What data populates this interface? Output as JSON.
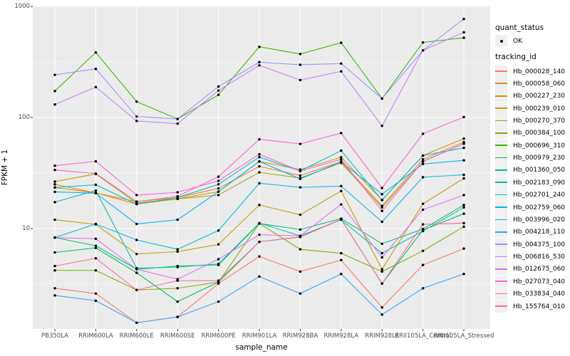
{
  "chart_data": {
    "type": "line",
    "scale": "log10",
    "title": "",
    "xlabel": "sample_name",
    "ylabel": "FPKM + 1",
    "ylim": [
      1.25,
      1100
    ],
    "yticks": [
      {
        "label": "1000",
        "value": 1000
      },
      {
        "label": "100",
        "value": 100
      },
      {
        "label": "10",
        "value": 10
      }
    ],
    "grid": "major-and-minor-white-on-grey",
    "legend_position": "right",
    "point_marker": "black-dot",
    "categories": [
      "PB350LA",
      "RRIM600LA",
      "RRIM600LE",
      "RRIM600SE",
      "RRIM600PE",
      "RRIM901LA",
      "RRIM928BA",
      "RRIM928LA",
      "RRIM928LE",
      "RRII105LA_Control",
      "RRII105LA_Stressed"
    ],
    "series": [
      {
        "name": "Hb_000028_140",
        "color": "#F8766D",
        "values": [
          2.9,
          2.6,
          1.42,
          1.6,
          3.2,
          5.6,
          4.1,
          5.2,
          1.95,
          4.7,
          6.6
        ]
      },
      {
        "name": "Hb_000058_060",
        "color": "#EA8331",
        "values": [
          25,
          20.9,
          17.5,
          19,
          23,
          36.3,
          30,
          40,
          16,
          42,
          60
        ]
      },
      {
        "name": "Hb_000227_230",
        "color": "#D89000",
        "values": [
          23.4,
          21,
          16.6,
          18.5,
          21.5,
          40.2,
          34,
          43.8,
          18.1,
          45.4,
          64.6
        ]
      },
      {
        "name": "Hb_000239_010",
        "color": "#C09B00",
        "values": [
          12,
          10.9,
          5.9,
          6.2,
          7.2,
          16.3,
          13.3,
          21.8,
          4.3,
          16.7,
          28.3
        ]
      },
      {
        "name": "Hb_000270_370",
        "color": "#A3A500",
        "values": [
          26.5,
          31,
          17,
          18.5,
          20,
          32.1,
          28.5,
          39,
          15.5,
          40,
          58
        ]
      },
      {
        "name": "Hb_000384_100",
        "color": "#7CAE00",
        "values": [
          4.2,
          4.2,
          2.8,
          2.9,
          3.3,
          11.1,
          6.5,
          6.0,
          4.1,
          6.3,
          10.4
        ]
      },
      {
        "name": "Hb_000696_310",
        "color": "#39B600",
        "values": [
          173,
          385,
          139,
          97,
          160,
          433,
          373,
          471,
          148,
          474,
          522
        ]
      },
      {
        "name": "Hb_000979_230",
        "color": "#00BB4E",
        "values": [
          6.1,
          6.7,
          4.0,
          2.2,
          3.3,
          7.6,
          8.4,
          12.1,
          3.2,
          9.7,
          13.6
        ]
      },
      {
        "name": "Hb_001360_050",
        "color": "#00BF7D",
        "values": [
          8.3,
          7.0,
          4.3,
          4.6,
          4.7,
          11.1,
          9.8,
          12.3,
          7.3,
          9.9,
          16.3
        ]
      },
      {
        "name": "Hb_002183_090",
        "color": "#00C1A3",
        "values": [
          17.3,
          22,
          4.4,
          4.5,
          4.8,
          11.2,
          8.6,
          12.0,
          6.0,
          9.5,
          15.5
        ]
      },
      {
        "name": "Hb_002701_240",
        "color": "#00BFC4",
        "values": [
          23.4,
          24.8,
          16.6,
          19,
          25,
          44,
          33,
          50.3,
          18,
          45.4,
          53.3
        ]
      },
      {
        "name": "Hb_002759_060",
        "color": "#00BAE0",
        "values": [
          8.3,
          11,
          7.9,
          6.5,
          9.6,
          25.6,
          23.5,
          24.1,
          11.5,
          29,
          30.5
        ]
      },
      {
        "name": "Hb_003996_020",
        "color": "#00B0F6",
        "values": [
          21.4,
          20.8,
          11,
          12,
          21.5,
          40.2,
          28,
          40,
          20.4,
          38.1,
          41.1
        ]
      },
      {
        "name": "Hb_004218_110",
        "color": "#35A2FF",
        "values": [
          2.5,
          2.24,
          1.42,
          1.6,
          2.2,
          3.7,
          2.6,
          3.9,
          1.68,
          2.9,
          3.9
        ]
      },
      {
        "name": "Hb_004375_100",
        "color": "#9590FF",
        "values": [
          242,
          274,
          102,
          97,
          190,
          315,
          298,
          306,
          148,
          402,
          771
        ]
      },
      {
        "name": "Hb_006816_530",
        "color": "#C77CFF",
        "values": [
          131,
          188,
          93,
          88,
          175,
          295,
          217,
          260,
          84,
          402,
          585
        ]
      },
      {
        "name": "Hb_012675_060",
        "color": "#E76BF3",
        "values": [
          8.3,
          8.1,
          4.3,
          3.5,
          5.3,
          8.8,
          8.6,
          16.5,
          5.5,
          14.8,
          20
        ]
      },
      {
        "name": "Hb_027073_040",
        "color": "#FA62DB",
        "values": [
          36.8,
          40.3,
          20,
          21.2,
          26.9,
          46.7,
          33,
          42,
          14.4,
          40.3,
          58.2
        ]
      },
      {
        "name": "Hb_033834_040",
        "color": "#FF61CC",
        "values": [
          33.7,
          31.3,
          17.5,
          19.5,
          29.3,
          63.6,
          57.8,
          72.4,
          23.2,
          71.3,
          101
        ]
      },
      {
        "name": "Hb_155764_010",
        "color": "#FF67A4",
        "values": [
          4.6,
          5.4,
          2.8,
          3.4,
          3.4,
          7.6,
          8.4,
          12.1,
          3.2,
          10.9,
          11.2
        ]
      }
    ]
  },
  "axes": {
    "y_title": "FPKM + 1",
    "x_title": "sample_name"
  },
  "legend": {
    "quant_status_title": "quant_status",
    "quant_status_entries": [
      {
        "label": "OK",
        "marker": "black-dot"
      }
    ],
    "tracking_id_title": "tracking_id"
  },
  "colors": {
    "panel_background": "#EBEBEB",
    "gridline": "#FFFFFF",
    "tick_text": "#4D4D4D",
    "axis_text": "#000000",
    "point": "#000000",
    "legend_key_background": "#F0F0F0"
  }
}
